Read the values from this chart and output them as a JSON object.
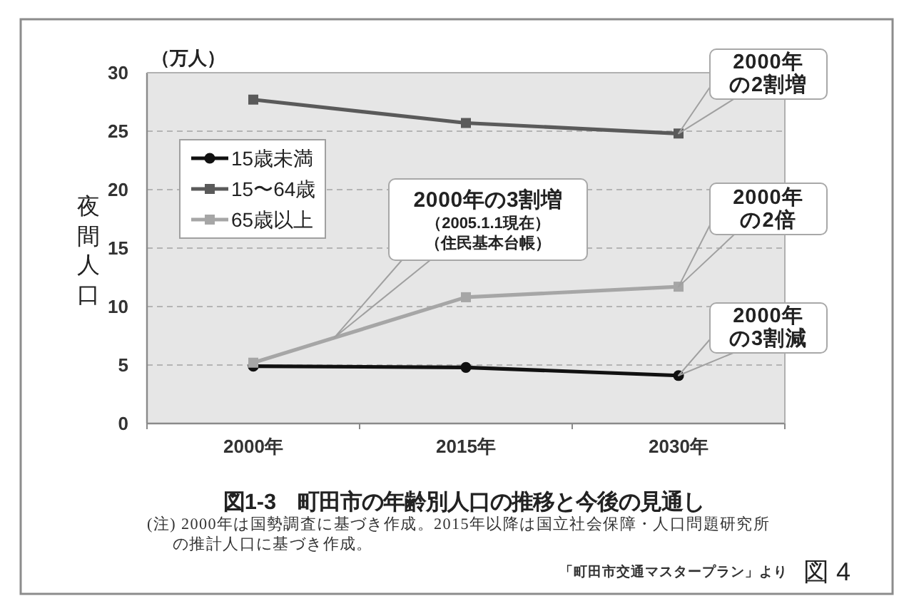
{
  "chart_data": {
    "type": "line",
    "title": "図1-3　町田市の年齢別人口の推移と今後の見通し",
    "ylabel": "夜間人口",
    "categories": [
      "2000年",
      "2015年",
      "2030年"
    ],
    "series": [
      {
        "name": "15歳未満",
        "color": "#111111",
        "marker": "circle",
        "values": [
          4.9,
          4.8,
          4.1
        ]
      },
      {
        "name": "15〜64歳",
        "color": "#5a5a5a",
        "marker": "square",
        "values": [
          27.7,
          25.7,
          24.8
        ]
      },
      {
        "name": "65歳以上",
        "color": "#a6a6a6",
        "marker": "square",
        "values": [
          5.2,
          10.8,
          11.7
        ]
      }
    ],
    "ylim": [
      0,
      30
    ],
    "yticks": [
      0,
      5,
      10,
      15,
      20,
      25,
      30
    ],
    "grid": "y",
    "legend": "top left",
    "annotations": [
      "（万人）",
      "2000年の2割増",
      "2000年の3割増",
      "（2005.1.1現在）",
      "（住民基本台帳）",
      "2000年の2倍",
      "2000年の3割減",
      "(注) 2000年は国勢調査に基づき作成。2015年以降は国立社会保障・人口問題研究所の推計人口に基づき作成。",
      "「町田市交通マスタープラン」より",
      "図 4"
    ]
  }
}
